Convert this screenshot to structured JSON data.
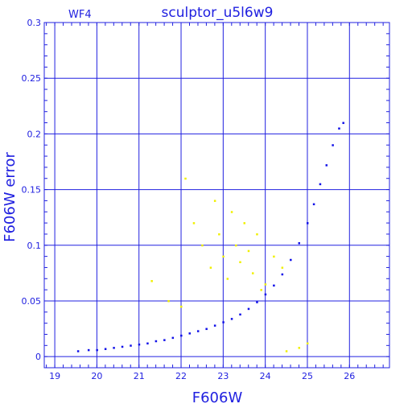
{
  "chart_data": {
    "type": "scatter",
    "title": "sculptor_u5l6w9",
    "panel_label": "WF4",
    "xlabel": "F606W",
    "ylabel": "F606W error",
    "xlim": [
      18.75,
      26.95
    ],
    "ylim": [
      -0.01,
      0.3
    ],
    "xticks": [
      19,
      20,
      21,
      22,
      23,
      24,
      25,
      26
    ],
    "yticks": [
      0,
      0.05,
      0.1,
      0.15,
      0.2,
      0.25,
      0.3
    ],
    "ytick_labels": [
      "0",
      "0.05",
      "0.1",
      "0.15",
      "0.2",
      "0.25",
      "0.3"
    ],
    "grid": true,
    "colors": {
      "axes": "#2020e0",
      "series_main": "#1010e8",
      "series_outliers": "#f0f000"
    },
    "series": [
      {
        "color": "#1010e8",
        "x": [
          19.55,
          19.8,
          20.0,
          20.2,
          20.4,
          20.6,
          20.8,
          21.0,
          21.2,
          21.4,
          21.6,
          21.8,
          22.0,
          22.2,
          22.4,
          22.6,
          22.8,
          23.0,
          23.2,
          23.4,
          23.6,
          23.8,
          24.0,
          24.2,
          24.4,
          24.6,
          24.8,
          25.0,
          25.15,
          25.3,
          25.45,
          25.6,
          25.75,
          25.85
        ],
        "y": [
          0.005,
          0.006,
          0.006,
          0.007,
          0.008,
          0.009,
          0.01,
          0.011,
          0.012,
          0.014,
          0.015,
          0.017,
          0.019,
          0.021,
          0.023,
          0.025,
          0.028,
          0.031,
          0.034,
          0.038,
          0.043,
          0.049,
          0.056,
          0.064,
          0.074,
          0.087,
          0.102,
          0.12,
          0.137,
          0.155,
          0.172,
          0.19,
          0.205,
          0.21
        ]
      },
      {
        "color": "#f0f000",
        "x": [
          22.1,
          22.3,
          22.5,
          22.7,
          22.8,
          22.9,
          23.0,
          23.1,
          23.2,
          23.3,
          23.4,
          23.5,
          23.6,
          23.7,
          23.8,
          23.9,
          24.0,
          24.2,
          24.4,
          21.3,
          21.7,
          22.0,
          24.5,
          24.8,
          25.0
        ],
        "y": [
          0.16,
          0.12,
          0.1,
          0.08,
          0.14,
          0.11,
          0.09,
          0.07,
          0.13,
          0.1,
          0.085,
          0.12,
          0.095,
          0.075,
          0.11,
          0.06,
          0.065,
          0.09,
          0.08,
          0.068,
          0.05,
          0.045,
          0.005,
          0.008,
          0.012
        ]
      }
    ]
  }
}
